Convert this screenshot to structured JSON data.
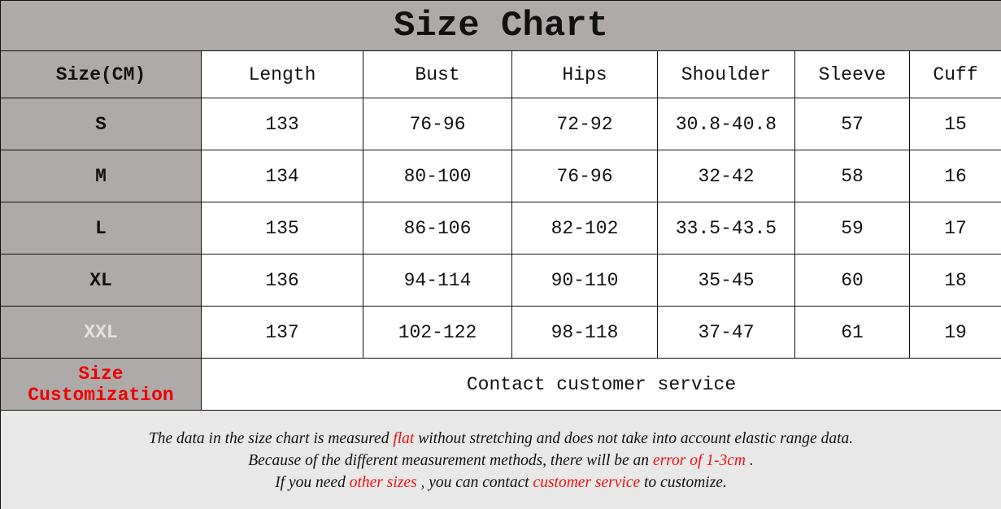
{
  "title": "Size Chart",
  "columns": [
    "Size(CM)",
    "Length",
    "Bust",
    "Hips",
    "Shoulder",
    "Sleeve",
    "Cuff"
  ],
  "rows": [
    [
      "S",
      "133",
      "76-96",
      "72-92",
      "30.8-40.8",
      "57",
      "15"
    ],
    [
      "M",
      "134",
      "80-100",
      "76-96",
      "32-42",
      "58",
      "16"
    ],
    [
      "L",
      "135",
      "86-106",
      "82-102",
      "33.5-43.5",
      "59",
      "17"
    ],
    [
      "XL",
      "136",
      "94-114",
      "90-110",
      "35-45",
      "60",
      "18"
    ],
    [
      "XXL",
      "137",
      "102-122",
      "98-118",
      "37-47",
      "61",
      "19"
    ]
  ],
  "customization": {
    "label": "Size Customization",
    "value": "Contact customer service"
  },
  "notes": {
    "line1": [
      "The data in the size chart is measured ",
      "flat",
      " without stretching and does not take into account elastic range data."
    ],
    "line2": [
      "Because of the different measurement methods, there will be an ",
      "error of 1-3cm",
      " ."
    ],
    "line3": [
      "If you need ",
      "other sizes",
      " , you can contact ",
      "customer service",
      " to customize."
    ]
  },
  "colors": {
    "header_gray": "#aeaaa9",
    "footer_gray": "#e8e8e8",
    "highlight_red": "#ee0000"
  }
}
